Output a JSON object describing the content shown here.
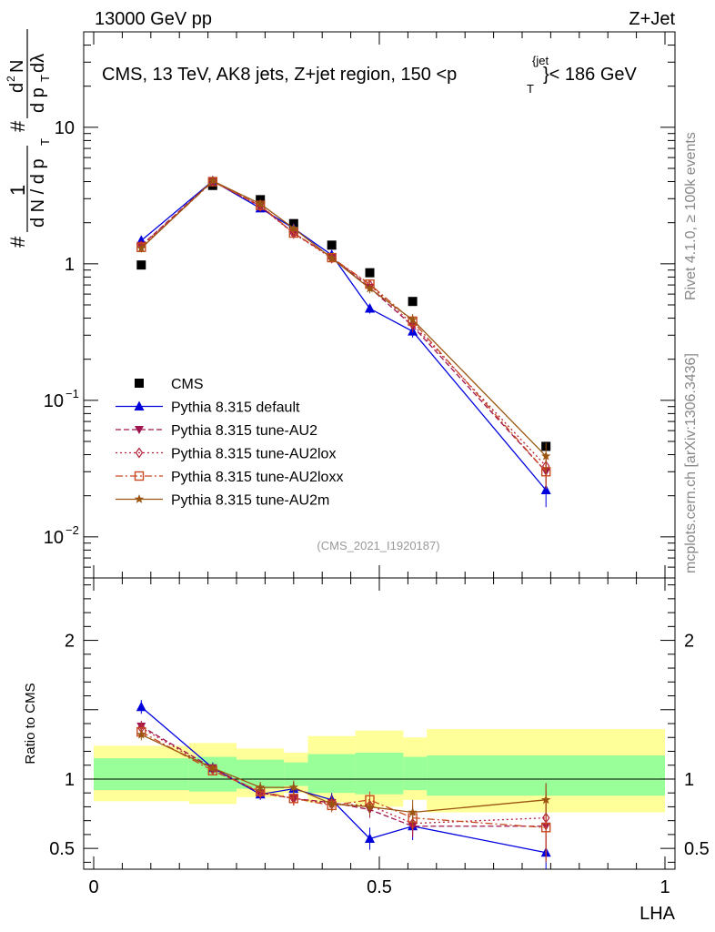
{
  "header": {
    "left": "13000 GeV pp",
    "right": "Z+Jet"
  },
  "side_labels": {
    "rivet": "Rivet 4.1.0, ≥ 100k events",
    "mcplots": "mcplots.cern.ch [arXiv:1306.3436]"
  },
  "chart_data": {
    "type": "line",
    "title": "CMS, 13 TeV, AK8 jets, Z+jet region, 150 <p",
    "title_sub": "T",
    "title_sup": "{jet",
    "title_close": "}< 186 GeV",
    "ylabel_frac": "1 / dN/dp_T  d²N/dp_T dλ",
    "ylabel_parts": {
      "hash": "#",
      "num1": "1",
      "den1": "d N / d p",
      "sub": "T",
      "num2_hash": "#",
      "num2": "d",
      "num2_sup": "2",
      "num2_rest": "N",
      "den2": "d p",
      "den2_tail": " dλ"
    },
    "xlabel": "LHA",
    "ratio_ylabel": "Ratio to CMS",
    "watermark": "(CMS_2021_I1920187)",
    "x": [
      0.0833,
      0.2083,
      0.2917,
      0.35,
      0.4167,
      0.4833,
      0.5583,
      0.7917
    ],
    "xlim": [
      0,
      1
    ],
    "ylim_log": [
      0.005,
      50
    ],
    "x_ticks": [
      {
        "v": 0,
        "label": "0"
      },
      {
        "v": 0.5,
        "label": "0.5"
      },
      {
        "v": 1,
        "label": "1"
      }
    ],
    "y_ticks": [
      {
        "v": 10,
        "base": "10",
        "exp": ""
      },
      {
        "v": 1,
        "base": "1",
        "exp": ""
      },
      {
        "v": 0.1,
        "base": "10",
        "exp": "−1"
      },
      {
        "v": 0.01,
        "base": "10",
        "exp": "−2"
      }
    ],
    "series": [
      {
        "name": "CMS",
        "color": "#000000",
        "marker": "square",
        "line": "none",
        "values": [
          0.98,
          3.75,
          2.95,
          1.97,
          1.37,
          0.86,
          0.53,
          0.046
        ]
      },
      {
        "name": "Pythia 8.315 default",
        "color": "#0000dd",
        "marker": "triangle-up",
        "line": "solid",
        "values": [
          1.48,
          4.05,
          2.55,
          1.82,
          1.16,
          0.47,
          0.32,
          0.022
        ]
      },
      {
        "name": "Pythia 8.315 tune-AU2",
        "color": "#a0154f",
        "marker": "triangle-down",
        "line": "dashed",
        "values": [
          1.36,
          4.05,
          2.65,
          1.68,
          1.12,
          0.67,
          0.35,
          0.03
        ]
      },
      {
        "name": "Pythia 8.315 tune-AU2lox",
        "color": "#b5203a",
        "marker": "diamond-open",
        "line": "dotted",
        "values": [
          1.35,
          4.02,
          2.63,
          1.67,
          1.1,
          0.7,
          0.36,
          0.033
        ]
      },
      {
        "name": "Pythia 8.315 tune-AU2loxx",
        "color": "#c84a20",
        "marker": "square-open",
        "line": "dashdot",
        "values": [
          1.32,
          4.0,
          2.68,
          1.68,
          1.11,
          0.71,
          0.38,
          0.03
        ]
      },
      {
        "name": "Pythia 8.315 tune-AU2m",
        "color": "#9a5511",
        "marker": "star",
        "line": "solid",
        "values": [
          1.3,
          4.05,
          2.75,
          1.82,
          1.1,
          0.66,
          0.39,
          0.039
        ]
      }
    ],
    "ratio": {
      "ylim": [
        0.35,
        2.45
      ],
      "y_ticks": [
        {
          "v": 0.5,
          "label": "0.5"
        },
        {
          "v": 1,
          "label": "1"
        },
        {
          "v": 2,
          "label": "2"
        }
      ],
      "band_edges": [
        0,
        0.167,
        0.25,
        0.333,
        0.375,
        0.458,
        0.542,
        0.583,
        1.0
      ],
      "band_yellow": [
        [
          0.84,
          1.24
        ],
        [
          0.82,
          1.26
        ],
        [
          0.87,
          1.22
        ],
        [
          0.9,
          1.19
        ],
        [
          0.83,
          1.31
        ],
        [
          0.8,
          1.35
        ],
        [
          0.85,
          1.3
        ],
        [
          0.76,
          1.36
        ]
      ],
      "band_green": [
        [
          0.92,
          1.15
        ],
        [
          0.91,
          1.16
        ],
        [
          0.93,
          1.14
        ],
        [
          0.95,
          1.12
        ],
        [
          0.9,
          1.18
        ],
        [
          0.89,
          1.19
        ],
        [
          0.92,
          1.16
        ],
        [
          0.88,
          1.17
        ]
      ],
      "series_values": [
        [
          1.52,
          1.08,
          0.89,
          0.93,
          0.85,
          0.57,
          0.66,
          0.47
        ],
        [
          1.38,
          1.08,
          0.9,
          0.86,
          0.83,
          0.78,
          0.66,
          0.66
        ],
        [
          1.37,
          1.07,
          0.9,
          0.86,
          0.82,
          0.81,
          0.68,
          0.72
        ],
        [
          1.34,
          1.06,
          0.91,
          0.86,
          0.81,
          0.85,
          0.72,
          0.65
        ],
        [
          1.32,
          1.08,
          0.94,
          0.94,
          0.82,
          0.8,
          0.76,
          0.85
        ]
      ],
      "series_err": [
        [
          0.05,
          0.04,
          0.04,
          0.05,
          0.05,
          0.08,
          0.1,
          0.12
        ],
        [
          0.04,
          0.03,
          0.04,
          0.05,
          0.05,
          0.06,
          0.08,
          0.25
        ],
        [
          0.04,
          0.03,
          0.04,
          0.05,
          0.05,
          0.06,
          0.08,
          0.25
        ],
        [
          0.04,
          0.03,
          0.04,
          0.05,
          0.05,
          0.06,
          0.09,
          0.25
        ],
        [
          0.04,
          0.03,
          0.04,
          0.05,
          0.05,
          0.06,
          0.09,
          0.12
        ]
      ]
    },
    "main_err": [
      0.07,
      0.03,
      0.04,
      0.05,
      0.05,
      0.08,
      0.1,
      0.25
    ],
    "legend_position": "middle-left"
  }
}
